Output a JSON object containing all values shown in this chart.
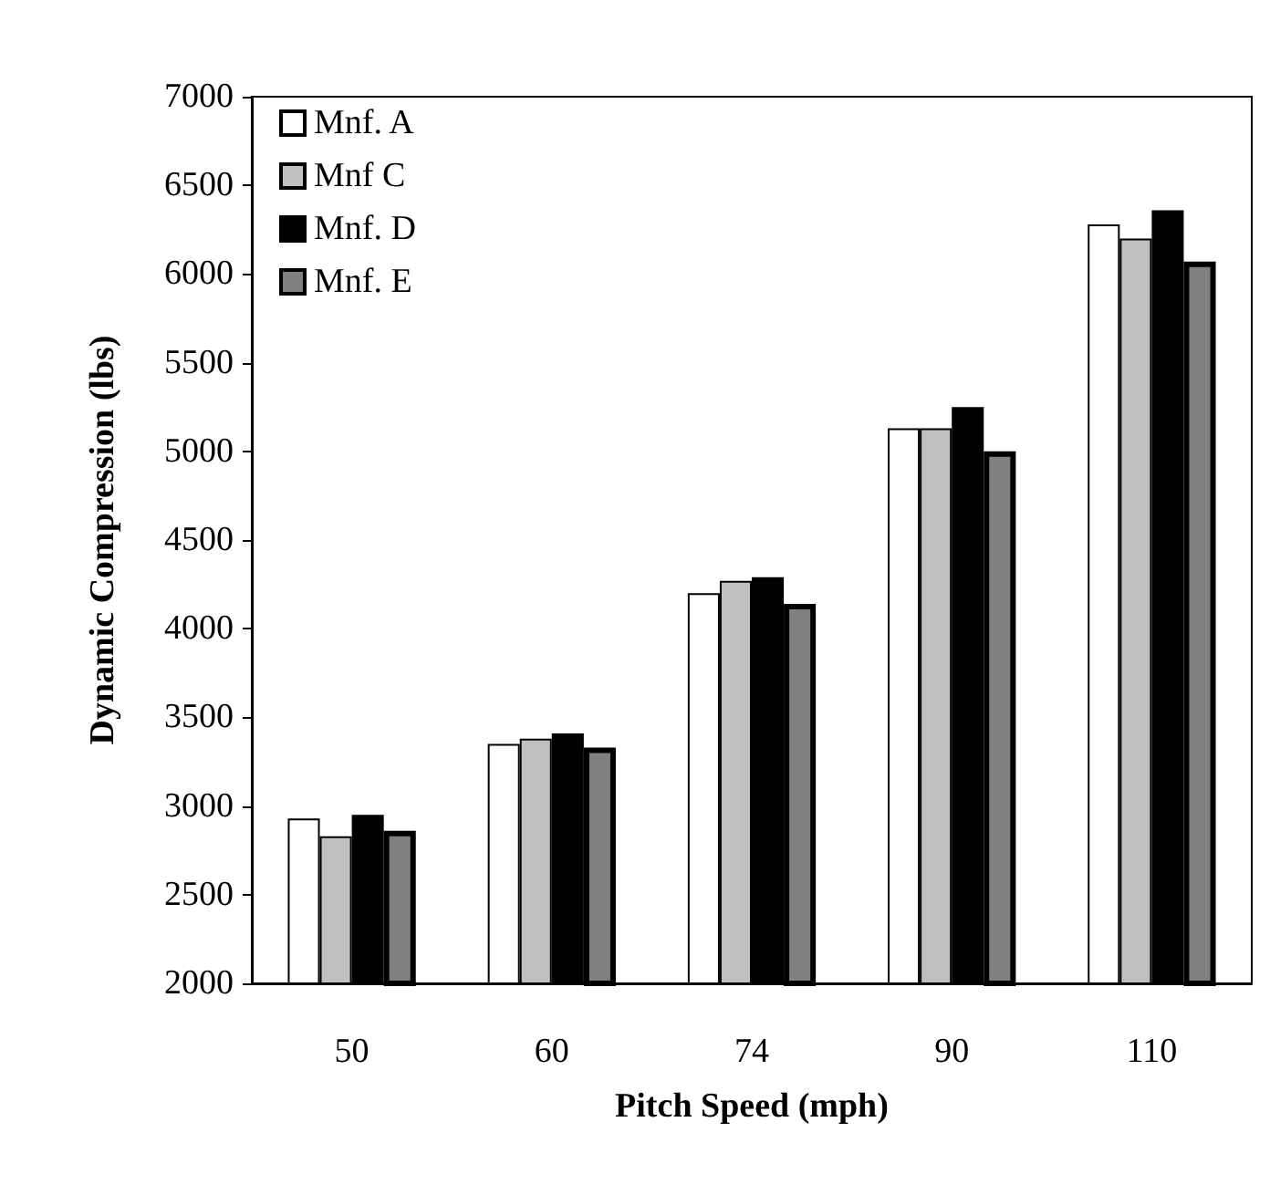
{
  "chart_data": {
    "type": "bar",
    "xlabel": "Pitch Speed (mph)",
    "ylabel": "Dynamic Compression (lbs)",
    "categories": [
      "50",
      "60",
      "74",
      "90",
      "110"
    ],
    "ylim": [
      2000,
      7000
    ],
    "yticks": [
      2000,
      2500,
      3000,
      3500,
      4000,
      4500,
      5000,
      5500,
      6000,
      6500,
      7000
    ],
    "legend": "top left",
    "grid": false,
    "series": [
      {
        "name": "Mnf. A",
        "color": "#ffffff",
        "values": [
          2930,
          3350,
          4200,
          5130,
          6280
        ]
      },
      {
        "name": "Mnf C",
        "color": "#c0c0c0",
        "values": [
          2830,
          3380,
          4270,
          5130,
          6200
        ]
      },
      {
        "name": "Mnf. D",
        "color": "#000000",
        "values": [
          2950,
          3410,
          4290,
          5250,
          6360
        ]
      },
      {
        "name": "Mnf. E",
        "color": "#808080",
        "values": [
          2860,
          3330,
          4140,
          5000,
          6070
        ]
      }
    ]
  }
}
